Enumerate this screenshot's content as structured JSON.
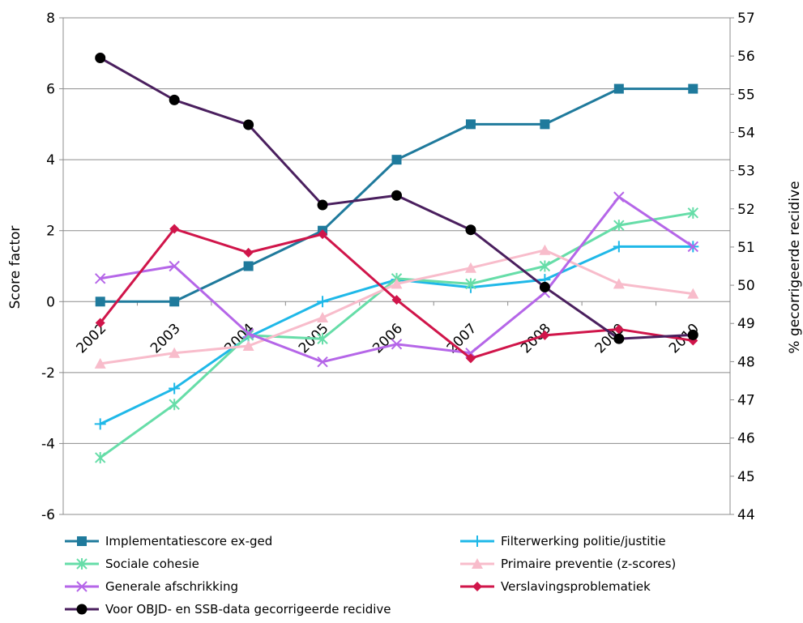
{
  "chart_data": {
    "type": "line",
    "categories": [
      "2002",
      "2003",
      "2004",
      "2005",
      "2006",
      "2007",
      "2008",
      "2009",
      "2010"
    ],
    "ylabel_left": "Score factor",
    "ylabel_right": "% gecorrigeerde recidive",
    "ylim_left": [
      -6,
      8
    ],
    "ylim_right": [
      44,
      57
    ],
    "yticks_left": [
      "-6",
      "-4",
      "-2",
      "0",
      "2",
      "4",
      "6",
      "8"
    ],
    "yticks_right": [
      "44",
      "45",
      "46",
      "47",
      "48",
      "49",
      "50",
      "51",
      "52",
      "53",
      "54",
      "55",
      "56",
      "57"
    ],
    "grid": "horizontal, left axis",
    "series": [
      {
        "name": "Implementatiescore ex-ged",
        "axis": "left",
        "color": "#1F7A9C",
        "marker": "square",
        "values": [
          0,
          0,
          1,
          2,
          4,
          5,
          5,
          6,
          6
        ]
      },
      {
        "name": "Filterwerking politie/justitie",
        "axis": "left",
        "color": "#1FB8E8",
        "marker": "plus",
        "values": [
          -3.45,
          -2.45,
          -1.0,
          0.0,
          0.62,
          0.4,
          0.62,
          1.55,
          1.55
        ]
      },
      {
        "name": "Sociale cohesie",
        "axis": "left",
        "color": "#66DDA8",
        "marker": "star",
        "values": [
          -4.4,
          -2.9,
          -0.95,
          -1.05,
          0.65,
          0.5,
          1.0,
          2.15,
          2.5
        ]
      },
      {
        "name": "Primaire preventie (z-scores)",
        "axis": "left",
        "color": "#F8BCCB",
        "marker": "triangle",
        "values": [
          -1.75,
          -1.45,
          -1.25,
          -0.45,
          0.5,
          0.95,
          1.45,
          0.5,
          0.22
        ]
      },
      {
        "name": "Generale afschrikking",
        "axis": "left",
        "color": "#B566E8",
        "marker": "x",
        "values": [
          0.65,
          1.0,
          -0.9,
          -1.7,
          -1.2,
          -1.45,
          0.25,
          2.95,
          1.55
        ]
      },
      {
        "name": "Verslavingsproblematiek",
        "axis": "left",
        "color": "#D0154A",
        "marker": "diamond",
        "values": [
          -0.6,
          2.05,
          1.38,
          1.9,
          0.05,
          -1.6,
          -0.95,
          -0.78,
          -1.1
        ]
      },
      {
        "name": "Voor OBJD- en SSB-data gecorrigeerde recidive",
        "axis": "right",
        "color": "#4A1F5E",
        "marker": "circle",
        "values": [
          55.95,
          54.85,
          54.2,
          52.1,
          52.35,
          51.45,
          49.95,
          48.6,
          48.7
        ]
      }
    ]
  }
}
